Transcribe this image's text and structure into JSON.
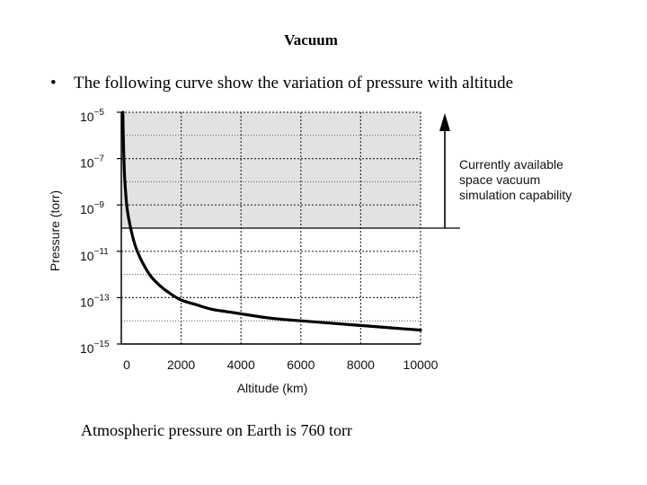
{
  "page": {
    "title": "Vacuum",
    "bullet": "The following curve show the variation of pressure with altitude",
    "footnote": "Atmospheric pressure on Earth is 760 torr"
  },
  "chart_data": {
    "type": "line",
    "xlabel": "Altitude (km)",
    "ylabel": "Pressure (torr)",
    "x_scale": "linear",
    "y_scale": "log",
    "xlim": [
      0,
      10000
    ],
    "ylim": [
      1e-15,
      1e-05
    ],
    "x_ticks": [
      "0",
      "2000",
      "4000",
      "6000",
      "8000",
      "10000"
    ],
    "y_ticks": [
      {
        "base": "10",
        "exp": "−5"
      },
      {
        "base": "10",
        "exp": "−7"
      },
      {
        "base": "10",
        "exp": "−9"
      },
      {
        "base": "10",
        "exp": "−11"
      },
      {
        "base": "10",
        "exp": "−13"
      },
      {
        "base": "10",
        "exp": "−15"
      }
    ],
    "grid": true,
    "series": [
      {
        "x": [
          50,
          80,
          120,
          180,
          250,
          330,
          450,
          600,
          800,
          1000,
          1300,
          1600,
          2000,
          2500,
          3000,
          3500,
          4000,
          5000,
          6000,
          7000,
          8000,
          9000,
          10000
        ],
        "y": [
          1e-05,
          1.6e-07,
          1e-08,
          1e-09,
          2.5e-10,
          7.9e-11,
          2e-11,
          6.3e-12,
          2e-12,
          7.9e-13,
          3.2e-13,
          1.6e-13,
          7.9e-14,
          5e-14,
          3.2e-14,
          2.5e-14,
          2e-14,
          1.3e-14,
          1e-14,
          7.9e-15,
          6.3e-15,
          5e-15,
          4e-15
        ]
      }
    ],
    "threshold_pressure": 1e-10,
    "shaded_region_label": "Currently available space vacuum simulation capability",
    "annotation_lines": [
      "Currently available",
      "space vacuum",
      "simulation capability"
    ]
  }
}
